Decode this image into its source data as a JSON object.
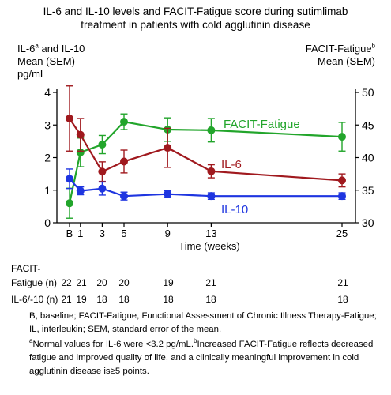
{
  "title_line1": "IL-6 and IL-10 levels and FACIT-Fatigue score during sutimlimab",
  "title_line2": "treatment in patients with cold agglutinin disease",
  "left_axis": {
    "line1_pre": "IL-6",
    "line1_sup": "a",
    "line1_post": " and IL-10",
    "line2": "Mean (SEM)",
    "unit": "pg/mL"
  },
  "right_axis": {
    "line1_pre": "FACIT-Fatigue",
    "line1_sup": "b",
    "line2": "Mean (SEM)"
  },
  "n_table": {
    "row1_label_a": "FACIT-",
    "row1_label_b": "Fatigue (n)",
    "row1_values": [
      "22",
      "21",
      "20",
      "20",
      "19",
      "21",
      "21"
    ],
    "row2_label": "IL-6/-10 (n)",
    "row2_values": [
      "21",
      "19",
      "18",
      "18",
      "18",
      "18",
      "18"
    ]
  },
  "footnotes": {
    "f1": "B, baseline; FACIT-Fatigue, Functional Assessment of Chronic Illness Therapy-Fatigue; IL, interleukin; SEM, standard error of the mean.",
    "f2_sup_a": "a",
    "f2_a": "Normal values for IL-6 were <3.2 pg/mL.",
    "f2_sup_b": "b",
    "f2_b": "Increased FACIT-Fatigue reflects decreased fatigue and improved quality of life, and a clinically meaningful improvement in cold agglutinin disease is≥5 points."
  },
  "chart_data": {
    "type": "line",
    "xlabel": "Time (weeks)",
    "x_ticks": [
      0,
      1,
      3,
      5,
      9,
      13,
      25
    ],
    "x_tick_labels": [
      "B",
      "1",
      "3",
      "5",
      "9",
      "13",
      "25"
    ],
    "y_left": {
      "range": [
        0,
        4
      ],
      "ticks": [
        0,
        1,
        2,
        3,
        4
      ]
    },
    "y_right": {
      "range": [
        30,
        50
      ],
      "ticks": [
        30,
        35,
        40,
        45,
        50
      ]
    },
    "series": [
      {
        "name": "FACIT-Fatigue",
        "axis": "right",
        "color": "#22a52b",
        "x": [
          0,
          1,
          3,
          5,
          9,
          13,
          25
        ],
        "y": [
          33.0,
          40.8,
          42.0,
          45.5,
          44.3,
          44.2,
          43.2
        ],
        "sem": [
          2.3,
          2.2,
          1.4,
          1.2,
          1.8,
          1.8,
          2.2
        ]
      },
      {
        "name": "IL-6",
        "axis": "left",
        "color": "#a0191e",
        "x": [
          0,
          1,
          3,
          5,
          9,
          13,
          25
        ],
        "y": [
          3.2,
          2.7,
          1.57,
          1.88,
          2.3,
          1.58,
          1.3
        ],
        "sem": [
          1.0,
          0.5,
          0.3,
          0.35,
          0.6,
          0.2,
          0.2
        ]
      },
      {
        "name": "IL-10",
        "axis": "left",
        "color": "#1e35e0",
        "x": [
          0,
          1,
          3,
          5,
          9,
          13,
          25
        ],
        "y": [
          1.35,
          0.98,
          1.05,
          0.82,
          0.88,
          0.82,
          0.82
        ],
        "sem": [
          0.3,
          0.12,
          0.2,
          0.12,
          0.1,
          0.1,
          0.1
        ]
      }
    ]
  }
}
